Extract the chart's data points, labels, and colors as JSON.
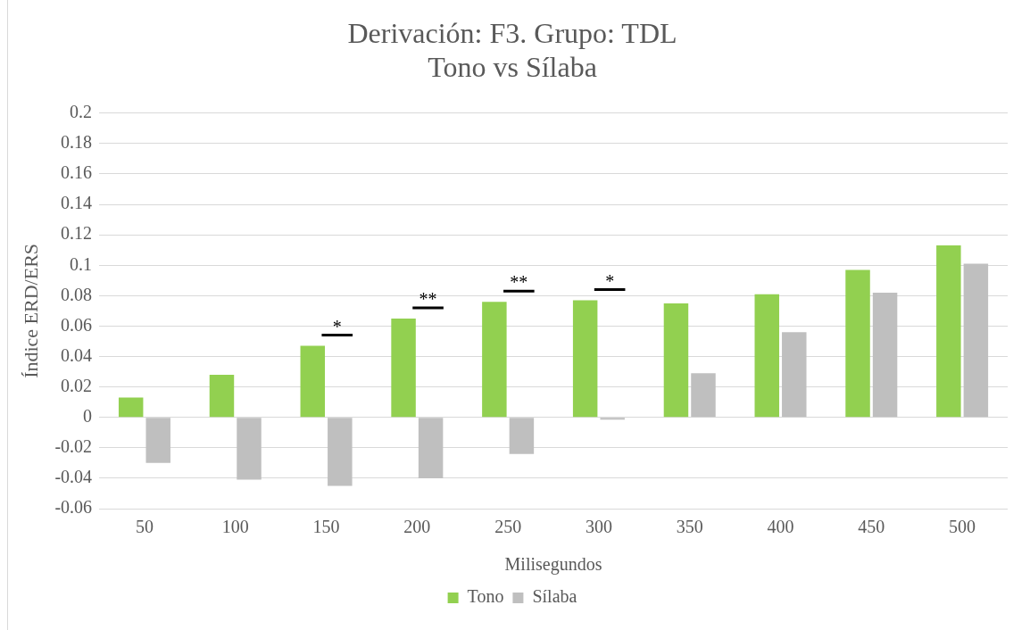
{
  "chart_data": {
    "type": "bar",
    "title": "Derivación: F3. Grupo: TDL",
    "subtitle": "Tono vs Sílaba",
    "xlabel": "Milisegundos",
    "ylabel": "Índice ERD/ERS",
    "categories": [
      "50",
      "100",
      "150",
      "200",
      "250",
      "300",
      "350",
      "400",
      "450",
      "500"
    ],
    "series": [
      {
        "name": "Tono",
        "color": "#92d050",
        "values": [
          0.013,
          0.028,
          0.047,
          0.065,
          0.076,
          0.077,
          0.075,
          0.081,
          0.097,
          0.113
        ]
      },
      {
        "name": "Sílaba",
        "color": "#bfbfbf",
        "values": [
          -0.03,
          -0.041,
          -0.045,
          -0.04,
          -0.024,
          -0.0015,
          0.029,
          0.056,
          0.082,
          0.101
        ]
      }
    ],
    "ylim": [
      -0.06,
      0.2
    ],
    "yticks": [
      -0.06,
      -0.04,
      -0.02,
      0,
      0.02,
      0.04,
      0.06,
      0.08,
      0.1,
      0.12,
      0.14,
      0.16,
      0.18,
      0.2
    ],
    "annotations": [
      {
        "text": "*",
        "x": "150",
        "y": 0.047
      },
      {
        "text": "**",
        "x": "200",
        "y": 0.065
      },
      {
        "text": "**",
        "x": "250",
        "y": 0.076
      },
      {
        "text": "*",
        "x": "300",
        "y": 0.077
      }
    ],
    "grid": "y",
    "legend": "bottom"
  }
}
